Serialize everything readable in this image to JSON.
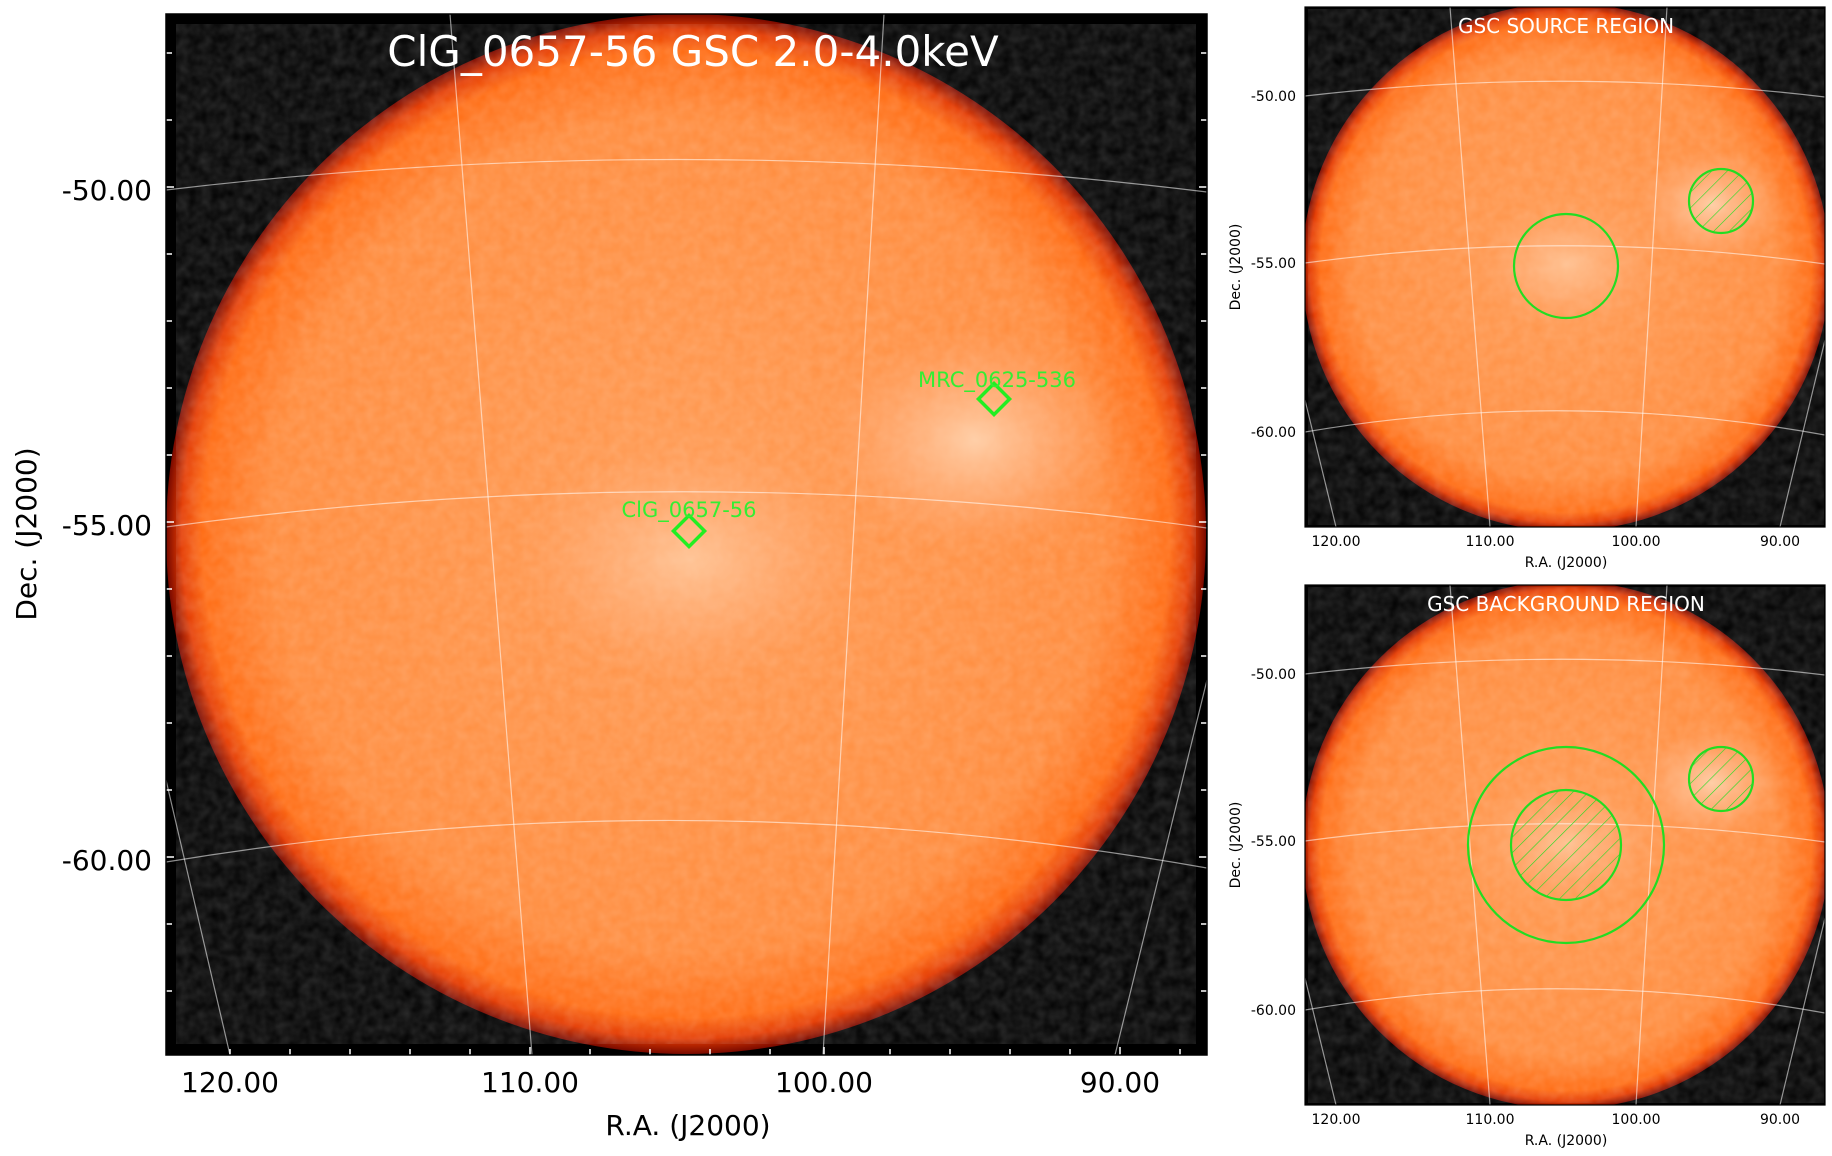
{
  "main_panel": {
    "title": "ClG_0657-56 GSC 2.0-4.0keV",
    "ylabel": "Dec. (J2000)",
    "xlabel": "R.A. (J2000)",
    "y_ticks": [
      "-50.00",
      "-55.00",
      "-60.00"
    ],
    "x_ticks": [
      "120.00",
      "110.00",
      "100.00",
      "90.00"
    ],
    "markers": [
      {
        "label": "MRC_0625-536"
      },
      {
        "label": "ClG_0657-56"
      }
    ],
    "marker_color": "#00ff00"
  },
  "source_panel": {
    "title": "GSC SOURCE REGION",
    "ylabel": "Dec. (J2000)",
    "xlabel": "R.A. (J2000)",
    "y_ticks": [
      "-50.00",
      "-55.00",
      "-60.00"
    ],
    "x_ticks": [
      "120.00",
      "110.00",
      "100.00",
      "90.00"
    ]
  },
  "background_panel": {
    "title": "GSC BACKGROUND REGION",
    "ylabel": "Dec. (J2000)",
    "xlabel": "R.A. (J2000)",
    "y_ticks": [
      "-50.00",
      "-55.00",
      "-60.00"
    ],
    "x_ticks": [
      "120.00",
      "110.00",
      "100.00",
      "90.00"
    ]
  },
  "colors": {
    "disk_center": "#ff9a4d",
    "disk_edge": "#ff6a10",
    "rim": "#c01800",
    "sky_background": "#000000",
    "region_green": "#22dd22"
  }
}
